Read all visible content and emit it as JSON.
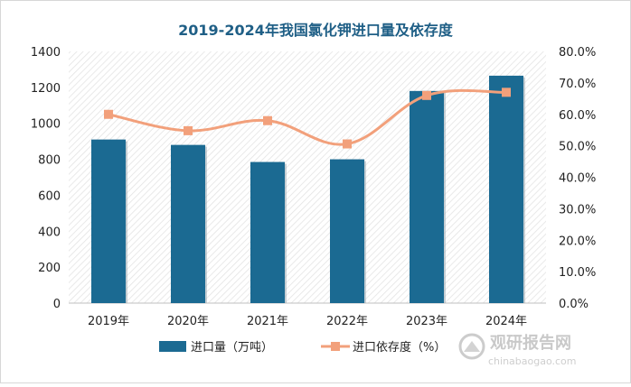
{
  "chart_data": {
    "type": "bar",
    "title": "2019-2024年我国氯化钾进口量及依存度",
    "categories": [
      "2019年",
      "2020年",
      "2021年",
      "2022年",
      "2023年",
      "2024年"
    ],
    "series": [
      {
        "name": "进口量（万吨）",
        "type": "bar",
        "axis": "left",
        "values": [
          910,
          880,
          785,
          800,
          1180,
          1265
        ],
        "color": "#1b6a92"
      },
      {
        "name": "进口依存度（%）",
        "type": "line",
        "axis": "right",
        "values": [
          60.0,
          54.8,
          58.0,
          50.6,
          66.0,
          67.0
        ],
        "color": "#f2a07b"
      }
    ],
    "left_axis": {
      "ylim": [
        0,
        1400
      ],
      "ticks": [
        "0",
        "200",
        "400",
        "600",
        "800",
        "1000",
        "1200",
        "1400"
      ]
    },
    "right_axis": {
      "ylim": [
        0,
        80
      ],
      "ticks": [
        "0.0%",
        "10.0%",
        "20.0%",
        "30.0%",
        "40.0%",
        "50.0%",
        "60.0%",
        "70.0%",
        "80.0%"
      ]
    },
    "legend_position": "bottom",
    "grid": false
  },
  "watermark": {
    "text_cn": "观研报告网",
    "text_en": "chinabaogao.com"
  }
}
